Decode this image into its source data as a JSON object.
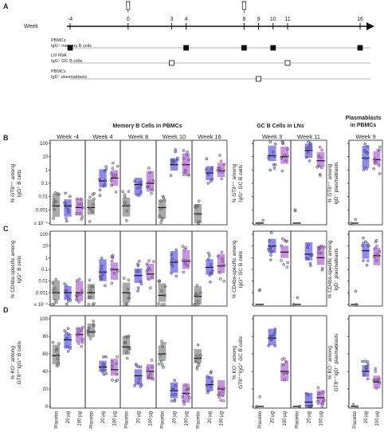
{
  "panel_labels": [
    "A",
    "B",
    "C",
    "D"
  ],
  "timeline": {
    "label": "Week",
    "weeks": [
      -4,
      0,
      3,
      4,
      8,
      9,
      10,
      11,
      16
    ],
    "doses_at": [
      0,
      8
    ],
    "rows": [
      {
        "lines": [
          "PBMCs",
          "IgG⁺ memory B cells"
        ],
        "samples": [
          -4,
          4,
          8,
          10,
          16
        ],
        "filled": true
      },
      {
        "lines": [
          "LN FNA",
          "IgG⁺ GC B cells"
        ],
        "samples": [
          3,
          11
        ],
        "filled": false
      },
      {
        "lines": [
          "PBMCs",
          "IgD⁻ plasmablasts"
        ],
        "samples": [
          9
        ],
        "filled": false
      }
    ]
  },
  "headers": {
    "memory": "Memory B Cells in PBMCs",
    "gc": "GC B Cells in LNs",
    "plasma": [
      "Plasmablasts",
      "in PBMCs"
    ]
  },
  "categories": [
    "Placebo",
    "20 µg",
    "100 µg"
  ],
  "colors": {
    "placebo": "#8c8c8c",
    "dose20": "#6a63e6",
    "dose100": "#b46fd6"
  },
  "chart_data": [
    {
      "panel": "B",
      "type": "box-scatter",
      "ylabel": {
        "memory": [
          "% GT8⁺⁺ among",
          "IgG⁺ B cells"
        ],
        "gc": [
          "% GT8⁺⁺ among",
          "IgG⁺ GC B cells"
        ],
        "plasma": [
          "% GT8⁺⁺ among",
          "IgD⁻ plasmablasts"
        ]
      },
      "yscale": "log",
      "ylim": [
        0.0001,
        100
      ],
      "yticks": [
        "≤ 10⁻⁴",
        "0.001",
        "0.01",
        "0.1",
        "1",
        "10",
        "100"
      ],
      "groups": [
        {
          "title": "Week -4",
          "medians": [
            0.002,
            0.002,
            0.0015
          ]
        },
        {
          "title": "Week 4",
          "medians": [
            0.0015,
            0.15,
            0.25
          ]
        },
        {
          "title": "Week 8",
          "medians": [
            0.002,
            0.08,
            0.1
          ]
        },
        {
          "title": "Week 10",
          "medians": [
            0.0015,
            2.5,
            2.5
          ]
        },
        {
          "title": "Week 16",
          "medians": [
            0.0005,
            0.6,
            0.9
          ]
        },
        {
          "title": "Week 3",
          "medians": [
            0.0001,
            12,
            10
          ]
        },
        {
          "title": "Week 11",
          "medians": [
            0.0001,
            30,
            5
          ]
        },
        {
          "title": "Week 9",
          "medians": [
            0.0001,
            8,
            6
          ]
        }
      ]
    },
    {
      "panel": "C",
      "type": "box-scatter",
      "ylabel": {
        "memory": [
          "% CD4bs-specific among",
          "IgG⁺ B cells"
        ],
        "gc": [
          "% CD4bs-specific among",
          "IgG⁺ GC B cells"
        ],
        "plasma": [
          "% CD4bs-specific among",
          "IgD⁻ plasmablasts"
        ]
      },
      "yscale": "log",
      "ylim": [
        0.0001,
        100
      ],
      "yticks": [
        "≤ 10⁻⁴",
        "0.001",
        "0.01",
        "0.1",
        "1",
        "10",
        "100"
      ],
      "groups": [
        {
          "title": "Week -4",
          "medians": [
            0.001,
            0.001,
            0.001
          ]
        },
        {
          "title": "Week 4",
          "medians": [
            0.001,
            0.06,
            0.1
          ]
        },
        {
          "title": "Week 8",
          "medians": [
            0.001,
            0.03,
            0.04
          ]
        },
        {
          "title": "Week 10",
          "medians": [
            0.0006,
            0.4,
            0.5
          ]
        },
        {
          "title": "Week 16",
          "medians": [
            0.0005,
            0.15,
            0.2
          ]
        },
        {
          "title": "Week 3",
          "medians": [
            0.0001,
            10,
            3
          ]
        },
        {
          "title": "Week 11",
          "medians": [
            0.0001,
            2,
            1
          ]
        },
        {
          "title": "Week 9",
          "medians": [
            0.0001,
            4,
            1.5
          ]
        }
      ]
    },
    {
      "panel": "D",
      "type": "box-scatter",
      "ylabel": {
        "memory": [
          "% KO⁻ among",
          "GT8⁺⁺IgG⁺ B cells"
        ],
        "gc": [
          "% KO⁻ among",
          "GT8⁺⁺IgG⁺ GC B cells"
        ],
        "plasma": [
          "% KO⁻ among",
          "GT8⁺⁺IgD⁻ plasmablasts"
        ]
      },
      "yscale": "linear",
      "ylim": [
        0,
        100
      ],
      "yticks": [
        "0",
        "20",
        "40",
        "60",
        "80",
        "100"
      ],
      "groups": [
        {
          "title": "Week -4",
          "medians": [
            58,
            76,
            82
          ]
        },
        {
          "title": "Week 4",
          "medians": [
            85,
            45,
            42
          ]
        },
        {
          "title": "Week 8",
          "medians": [
            68,
            35,
            40
          ]
        },
        {
          "title": "Week 10",
          "medians": [
            60,
            18,
            15
          ]
        },
        {
          "title": "Week 16",
          "medians": [
            55,
            25,
            20
          ]
        },
        {
          "title": "Week 3",
          "medians": [
            0,
            78,
            40
          ]
        },
        {
          "title": "Week 11",
          "medians": [
            0,
            5,
            10
          ]
        },
        {
          "title": "Week 9",
          "medians": [
            0,
            40,
            28
          ]
        }
      ]
    }
  ]
}
